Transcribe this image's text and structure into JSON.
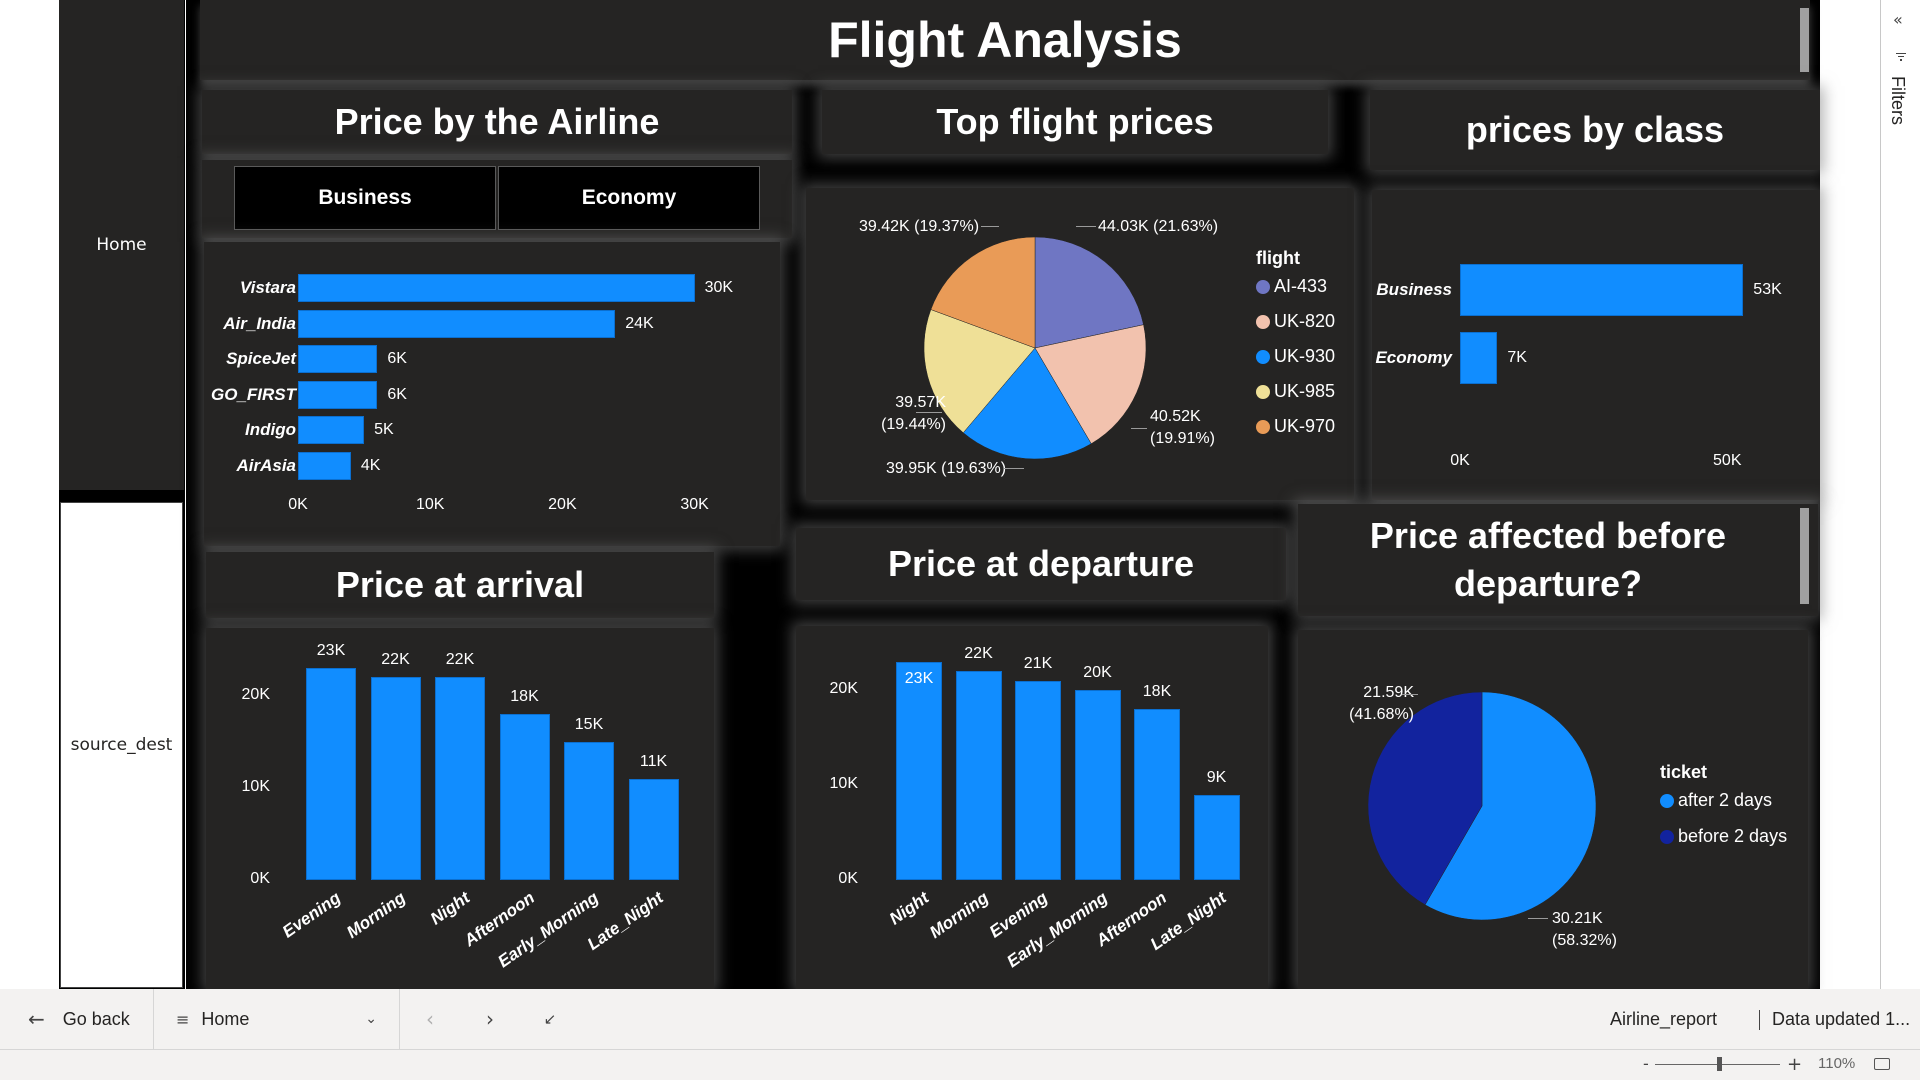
{
  "report": {
    "title": "Flight Analysis",
    "name": "Airline_report",
    "data_updated": "Data updated 1..."
  },
  "nav": {
    "pages": [
      {
        "label": "Home",
        "active": true
      },
      {
        "label": "source_dest",
        "active": false
      }
    ]
  },
  "filters_pane": {
    "label": "Filters",
    "collapse_icon": "«"
  },
  "visuals": {
    "airline": {
      "title": "Price by the Airline",
      "slicer": [
        "Business",
        "Economy"
      ]
    },
    "top_flights": {
      "title": "Top flight prices",
      "legend_title": "flight"
    },
    "by_class": {
      "title": "prices by class"
    },
    "arrival": {
      "title": "Price at arrival"
    },
    "departure": {
      "title": "Price at departure"
    },
    "before_departure": {
      "title": "Price affected  before departure?",
      "legend_title": "ticket"
    }
  },
  "footer": {
    "go_back": "Go back",
    "page_selector": "Home",
    "zoom_level": "110%",
    "zoom_minus": "-",
    "zoom_plus": "+"
  },
  "chart_data": [
    {
      "id": "airline",
      "type": "bar",
      "orientation": "horizontal",
      "title": "Price by the Airline",
      "categories": [
        "Vistara",
        "Air_India",
        "SpiceJet",
        "GO_FIRST",
        "Indigo",
        "AirAsia"
      ],
      "values": [
        30000,
        24000,
        6000,
        6000,
        5000,
        4000
      ],
      "data_labels": [
        "30K",
        "24K",
        "6K",
        "6K",
        "5K",
        "4K"
      ],
      "x_ticks": [
        "0K",
        "10K",
        "20K",
        "30K"
      ],
      "xlim": [
        0,
        32000
      ],
      "color": "#118dff",
      "grid": false
    },
    {
      "id": "top_flights",
      "type": "pie",
      "title": "Top flight prices",
      "legend_title": "flight",
      "legend_position": "right",
      "slices": [
        {
          "label": "AI-433",
          "value": 44030,
          "display": "44.03K (21.63%)",
          "percent": 21.63,
          "color": "#6f76c3"
        },
        {
          "label": "UK-820",
          "value": 40520,
          "display": "40.52K (19.91%)",
          "percent": 19.91,
          "color": "#f2c2ae"
        },
        {
          "label": "UK-930",
          "value": 39950,
          "display": "39.95K (19.63%)",
          "percent": 19.63,
          "color": "#118dff"
        },
        {
          "label": "UK-985",
          "value": 39570,
          "display": "39.57K (19.44%)",
          "percent": 19.44,
          "color": "#efe097"
        },
        {
          "label": "UK-970",
          "value": 39420,
          "display": "39.42K (19.37%)",
          "percent": 19.37,
          "color": "#e99b57"
        }
      ]
    },
    {
      "id": "by_class",
      "type": "bar",
      "orientation": "horizontal",
      "title": "prices by class",
      "categories": [
        "Business",
        "Economy"
      ],
      "values": [
        53000,
        7000
      ],
      "data_labels": [
        "53K",
        "7K"
      ],
      "x_ticks": [
        "0K",
        "50K"
      ],
      "xlim": [
        0,
        55000
      ],
      "color": "#118dff",
      "grid": false
    },
    {
      "id": "arrival",
      "type": "bar",
      "orientation": "vertical",
      "title": "Price at arrival",
      "categories": [
        "Evening",
        "Morning",
        "Night",
        "Afternoon",
        "Early_Morning",
        "Late_Night"
      ],
      "values": [
        23000,
        22000,
        22000,
        18000,
        15000,
        11000
      ],
      "data_labels": [
        "23K",
        "22K",
        "22K",
        "18K",
        "15K",
        "11K"
      ],
      "y_ticks": [
        "0K",
        "10K",
        "20K"
      ],
      "ylim": [
        0,
        23000
      ],
      "color": "#118dff",
      "grid": false
    },
    {
      "id": "departure",
      "type": "bar",
      "orientation": "vertical",
      "title": "Price at departure",
      "categories": [
        "Night",
        "Morning",
        "Evening",
        "Early_Morning",
        "Afternoon",
        "Late_Night"
      ],
      "values": [
        23000,
        22000,
        21000,
        20000,
        18000,
        9000
      ],
      "data_labels": [
        "23K",
        "22K",
        "21K",
        "20K",
        "18K",
        "9K"
      ],
      "y_ticks": [
        "0K",
        "10K",
        "20K"
      ],
      "ylim": [
        0,
        23000
      ],
      "color": "#118dff",
      "grid": false
    },
    {
      "id": "before_departure",
      "type": "pie",
      "title": "Price affected  before departure?",
      "legend_title": "ticket",
      "legend_position": "right",
      "slices": [
        {
          "label": "after 2 days",
          "value": 30210,
          "display": "30.21K (58.32%)",
          "percent": 58.32,
          "color": "#118dff"
        },
        {
          "label": "before 2 days",
          "value": 21590,
          "display": "21.59K (41.68%)",
          "percent": 41.68,
          "color": "#12239e"
        }
      ]
    }
  ]
}
